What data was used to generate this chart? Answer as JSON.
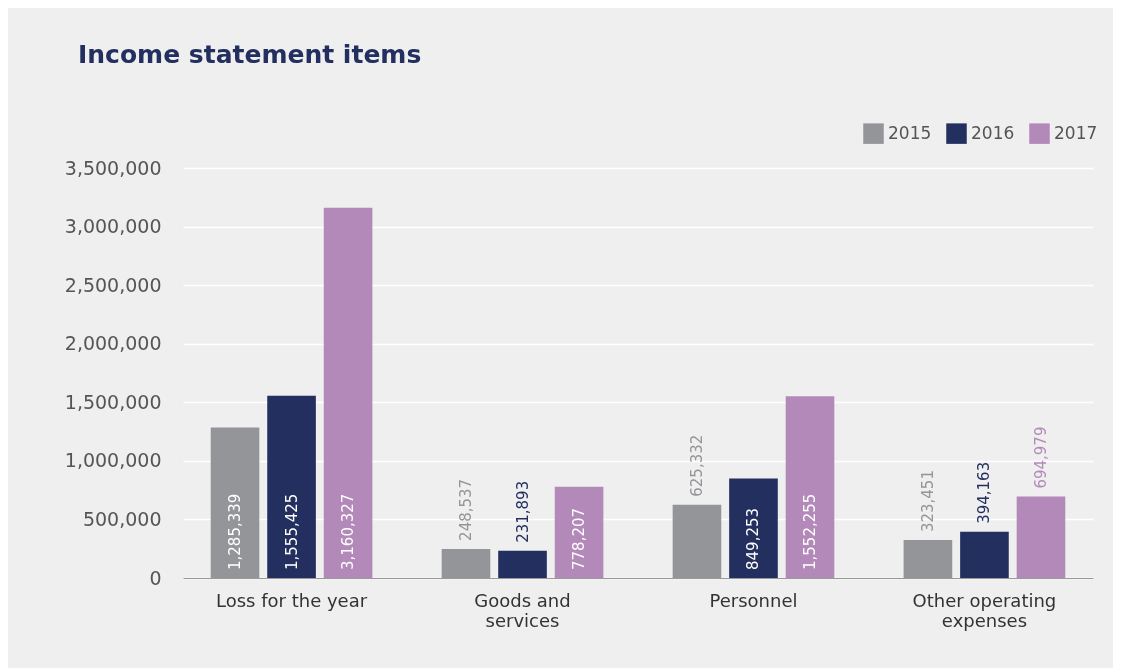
{
  "chart_data": {
    "type": "bar",
    "title": "Income statement items",
    "categories": [
      "Loss for the year",
      "Goods and services",
      "Personnel",
      "Other operating expenses"
    ],
    "series": [
      {
        "name": "2015",
        "color": "#939598",
        "values": [
          1285339,
          248537,
          625332,
          323451
        ],
        "value_labels": [
          "1,285,339",
          "248,537",
          "625,332",
          "323,451"
        ]
      },
      {
        "name": "2016",
        "color": "#232f5e",
        "values": [
          1555425,
          231893,
          849253,
          394163
        ],
        "value_labels": [
          "1,555,425",
          "231,893",
          "849,253",
          "394,163"
        ]
      },
      {
        "name": "2017",
        "color": "#b389b9",
        "values": [
          3160327,
          778207,
          1552255,
          694979
        ],
        "value_labels": [
          "3,160,327",
          "778,207",
          "1,552,255",
          "694,979"
        ]
      }
    ],
    "ylim": [
      0,
      3500000
    ],
    "yticks": [
      0,
      {
        "value": 500000,
        "label": "500,000"
      },
      {
        "value": 1000000,
        "label": "1,000,000"
      },
      {
        "value": 1500000,
        "label": "1,500,000"
      },
      {
        "value": 2000000,
        "label": "2,000,000"
      },
      {
        "value": 2500000,
        "label": "2,500,000"
      },
      {
        "value": 3000000,
        "label": "3,000,000"
      },
      {
        "value": 3500000,
        "label": "3,500,000"
      }
    ],
    "grid": "y",
    "legend": "top right"
  }
}
